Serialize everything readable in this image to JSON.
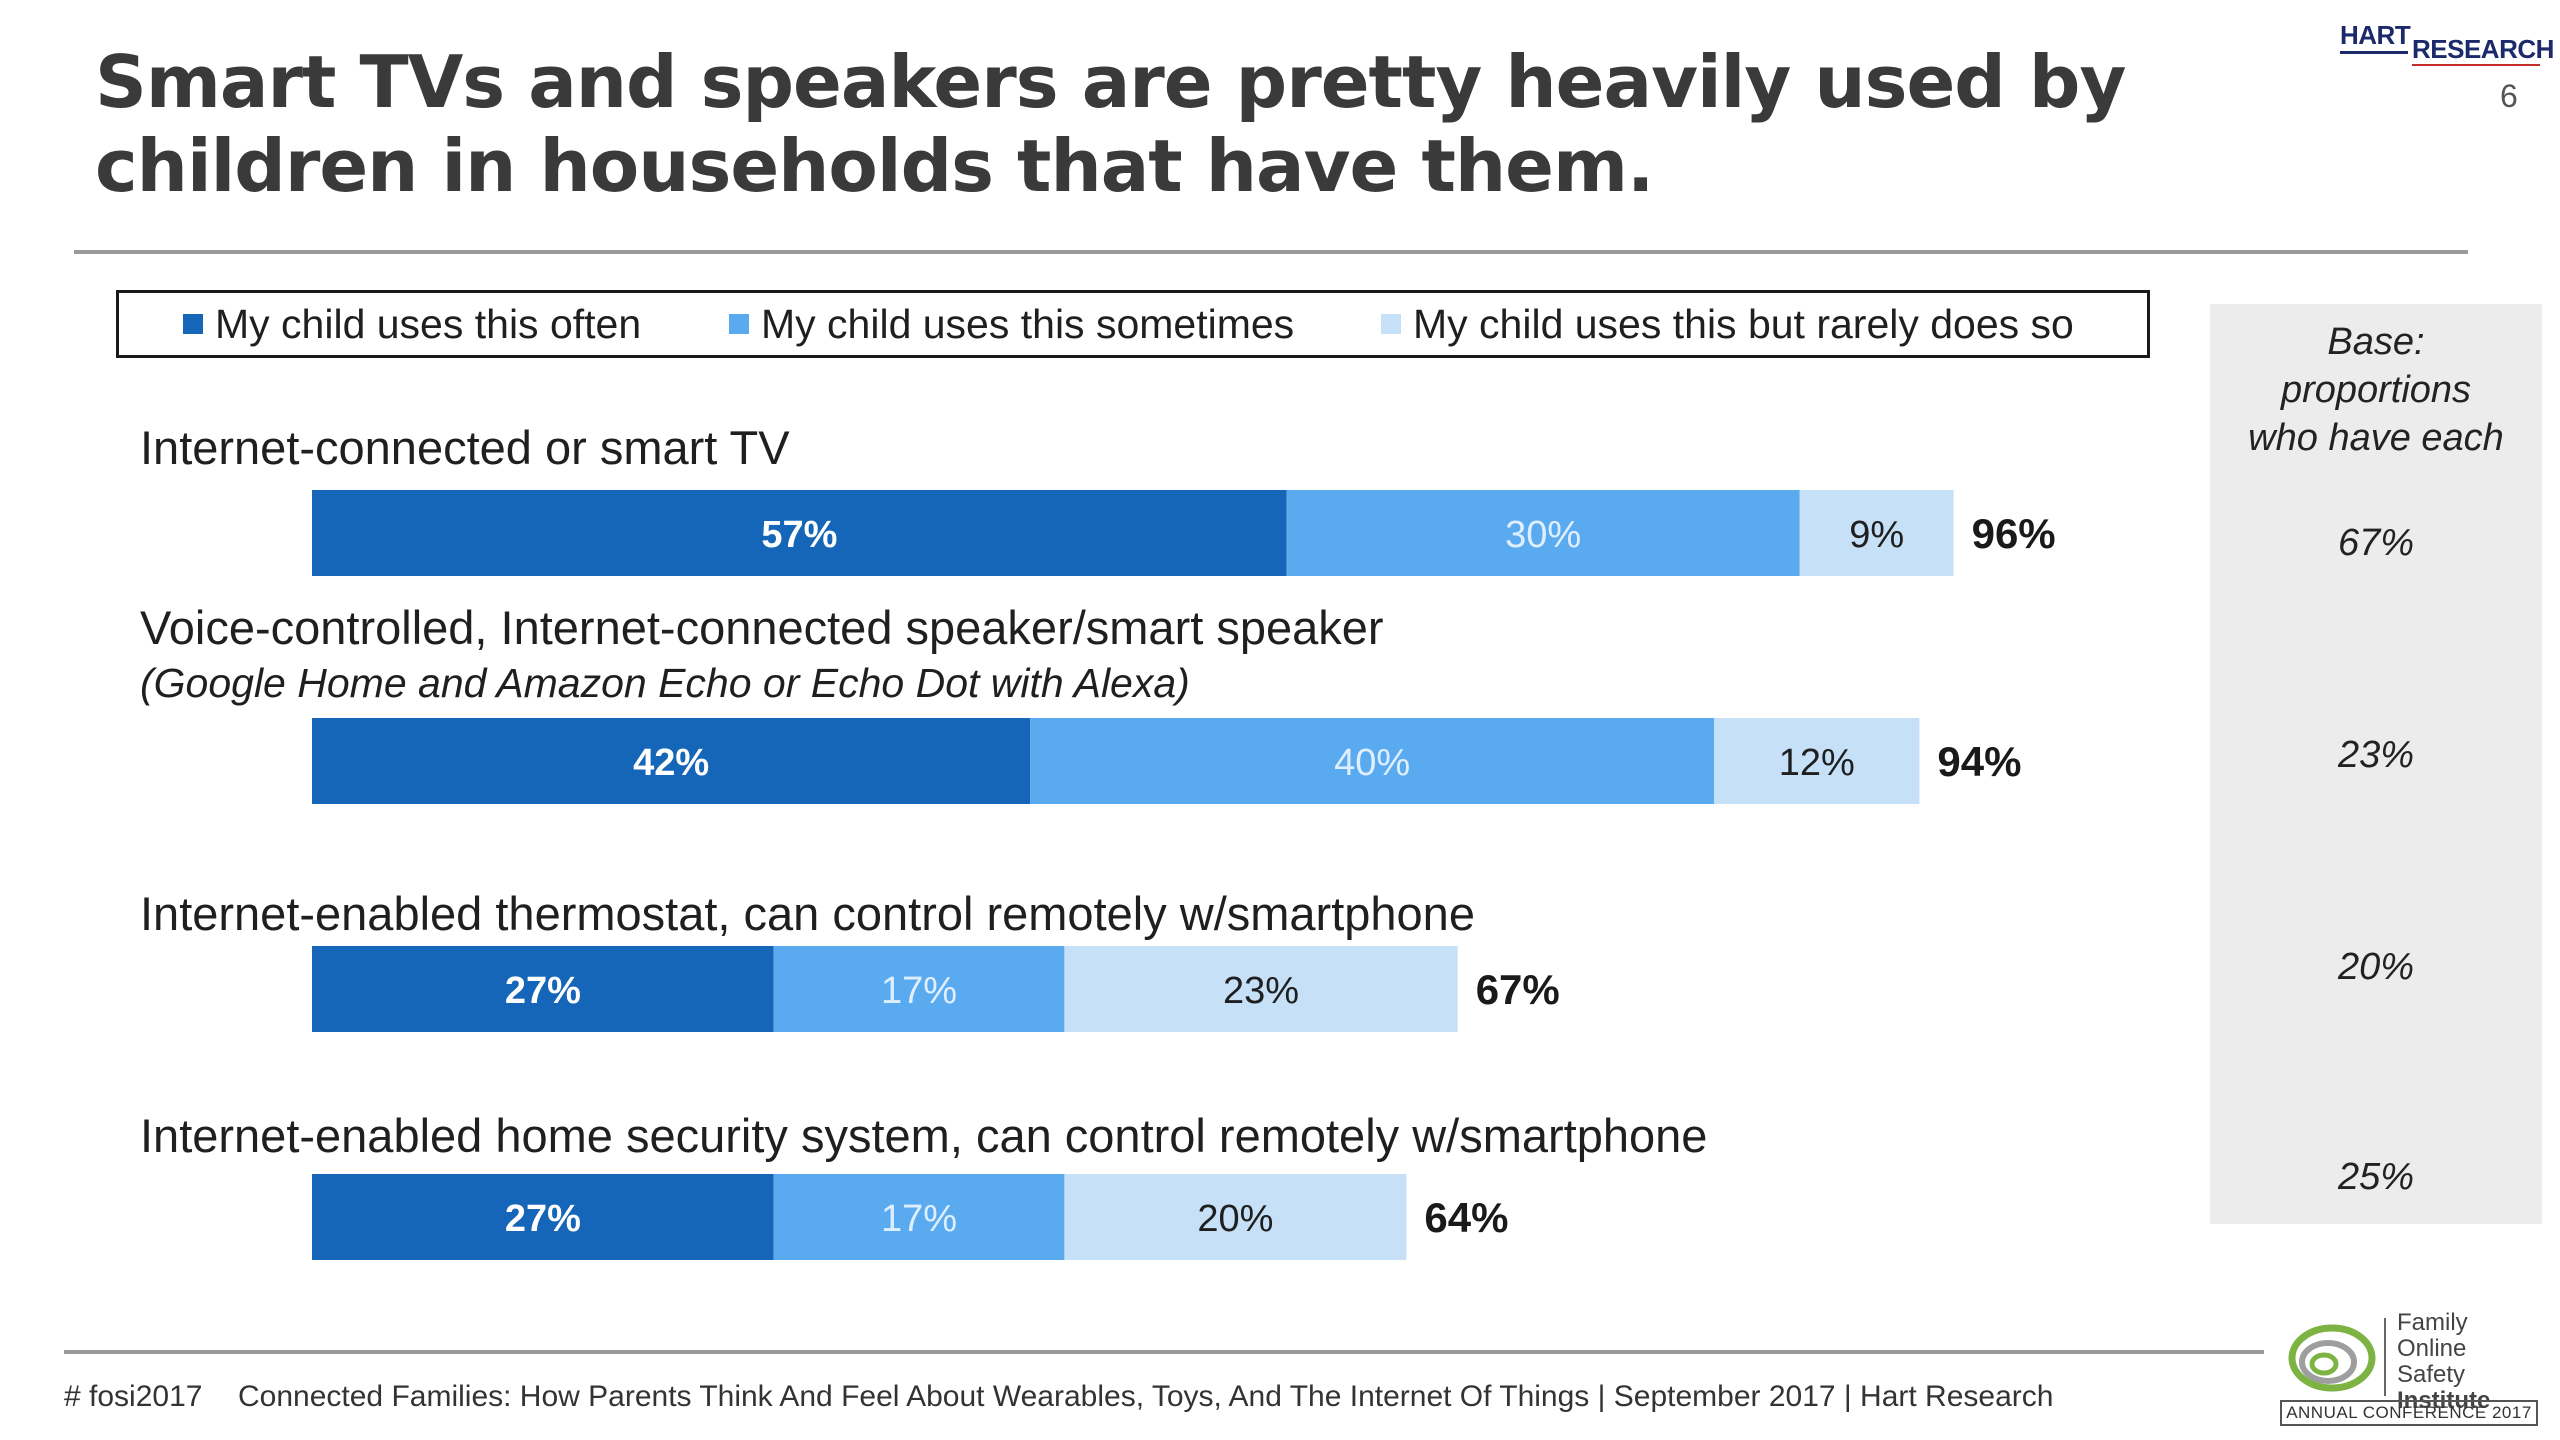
{
  "slide": {
    "title": "Smart TVs and speakers are pretty heavily used by children in households that have them.",
    "page_number": "6"
  },
  "brand": {
    "logo_part1": "HART",
    "logo_part2": "RESEARCH"
  },
  "legend": {
    "items": [
      {
        "label": "My child uses this often",
        "color": "#1565b8"
      },
      {
        "label": "My child uses this sometimes",
        "color": "#5aaaf0"
      },
      {
        "label": "My child uses this but rarely does so",
        "color": "#c5e0f7"
      }
    ]
  },
  "categories": [
    {
      "label": "Internet-connected or smart TV",
      "sublabel": ""
    },
    {
      "label": "Voice-controlled, Internet-connected speaker/smart speaker",
      "sublabel": "(Google Home and Amazon Echo or Echo Dot with Alexa)"
    },
    {
      "label": "Internet-enabled thermostat, can control remotely w/smartphone",
      "sublabel": ""
    },
    {
      "label": "Internet-enabled home security system, can control remotely w/smartphone",
      "sublabel": ""
    }
  ],
  "base_panel": {
    "heading": [
      "Base:",
      "proportions",
      "who have each"
    ],
    "values": [
      "67%",
      "23%",
      "20%",
      "25%"
    ]
  },
  "chart_data": {
    "type": "bar",
    "orientation": "horizontal",
    "stacked": true,
    "categories": [
      "Internet-connected or smart TV",
      "Voice-controlled, Internet-connected speaker/smart speaker",
      "Internet-enabled thermostat, can control remotely w/smartphone",
      "Internet-enabled home security system, can control remotely w/smartphone"
    ],
    "series": [
      {
        "name": "My child uses this often",
        "values": [
          57,
          42,
          27,
          27
        ],
        "labels": [
          "57%",
          "42%",
          "27%",
          "27%"
        ],
        "color": "#1565b8",
        "label_color": "#ffffff"
      },
      {
        "name": "My child uses this sometimes",
        "values": [
          30,
          40,
          17,
          17
        ],
        "labels": [
          "30%",
          "40%",
          "17%",
          "17%"
        ],
        "color": "#5aaaf0",
        "label_color": "#dfefff"
      },
      {
        "name": "My child uses this but rarely does so",
        "values": [
          9,
          12,
          23,
          20
        ],
        "labels": [
          "9%",
          "12%",
          "23%",
          "20%"
        ],
        "color": "#c5e0f7",
        "label_color": "#1f1f1f"
      }
    ],
    "totals": [
      96,
      94,
      67,
      64
    ],
    "total_labels": [
      "96%",
      "94%",
      "67%",
      "64%"
    ],
    "xlim": [
      0,
      100
    ],
    "legend_position": "top",
    "grid": false
  },
  "footer": {
    "hashtag": "# fosi2017",
    "text": "Connected Families: How Parents Think And Feel About Wearables, Toys, And The Internet Of Things | September 2017 | Hart Research"
  },
  "fosi_logo": {
    "name_lines": [
      "Family",
      "Online Safety",
      "Institute"
    ],
    "badge": "ANNUAL CONFERENCE 2017"
  }
}
